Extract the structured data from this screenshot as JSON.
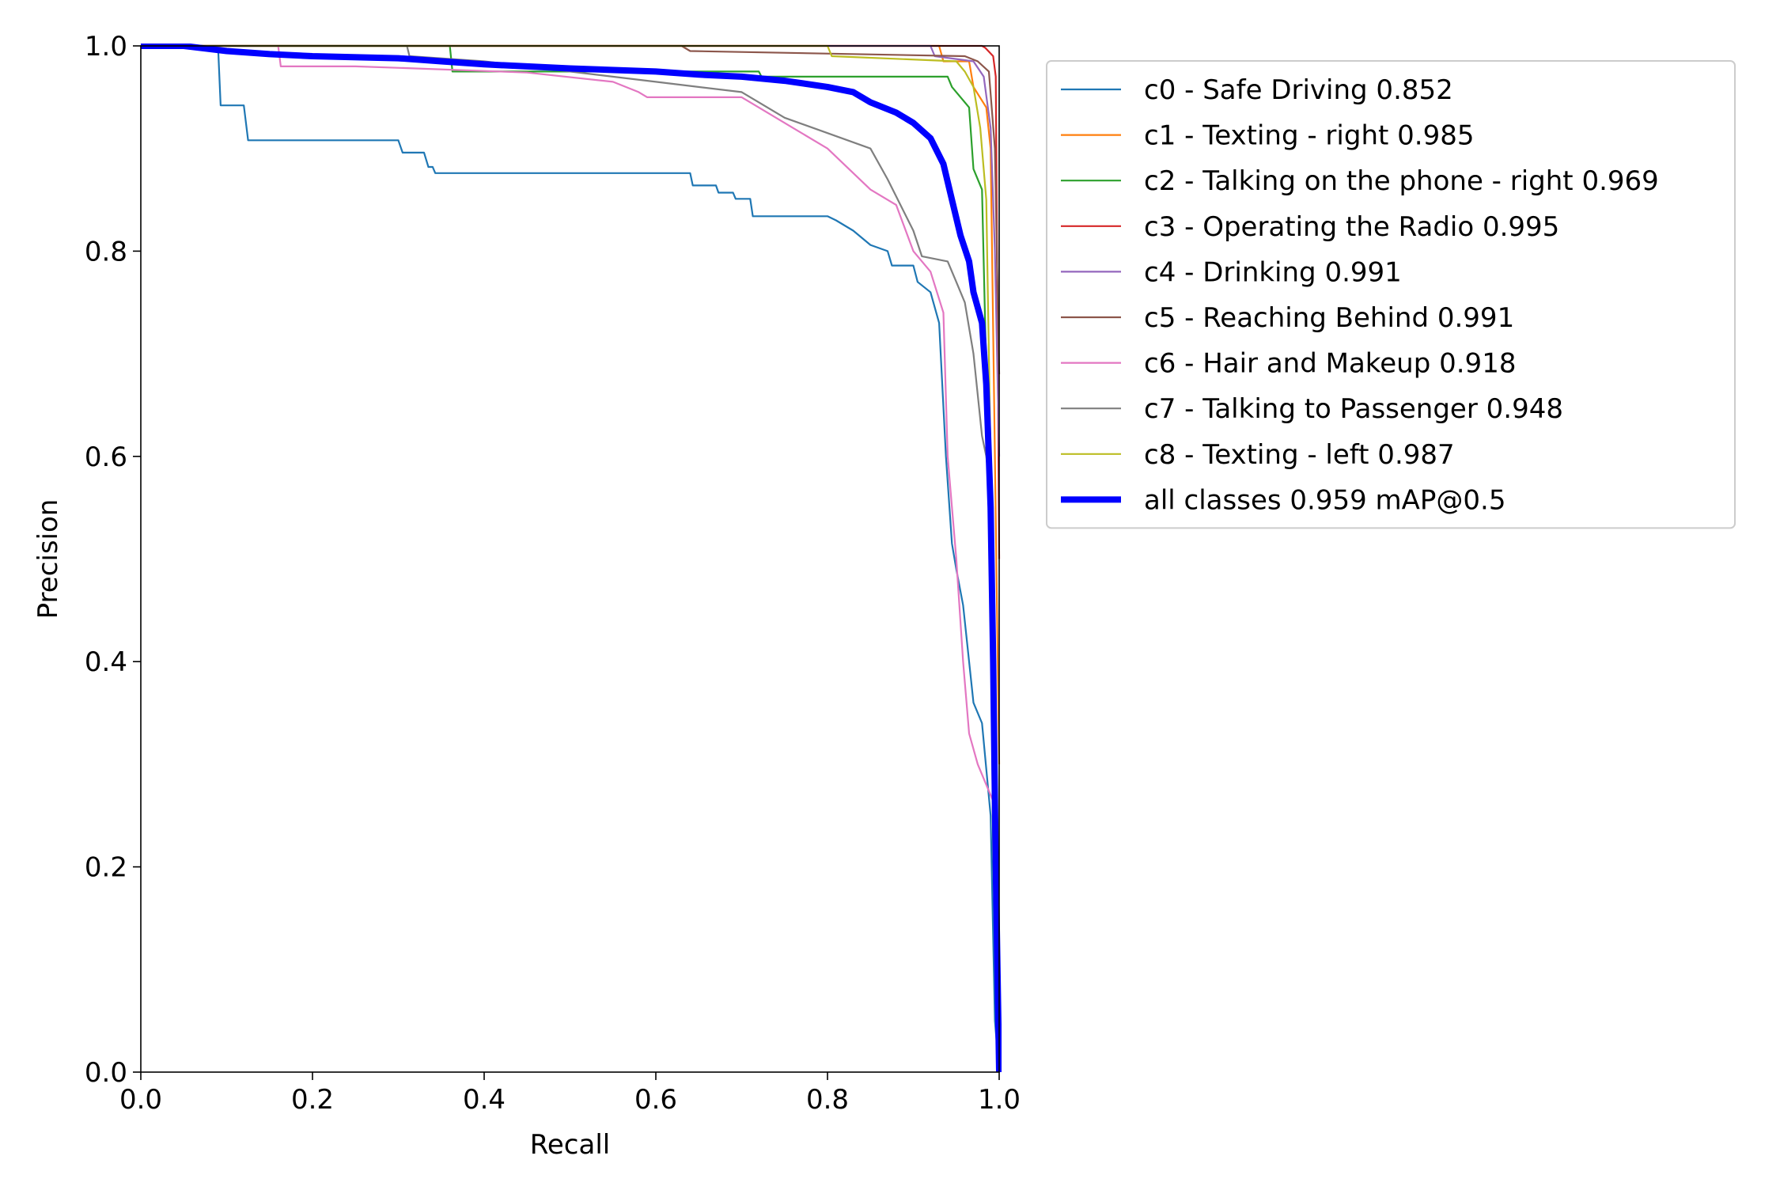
{
  "chart_data": {
    "type": "line",
    "title": "",
    "xlabel": "Recall",
    "ylabel": "Precision",
    "xlim": [
      0,
      1
    ],
    "ylim": [
      0,
      1
    ],
    "xticks": [
      "0.0",
      "0.2",
      "0.4",
      "0.6",
      "0.8",
      "1.0"
    ],
    "yticks": [
      "0.0",
      "0.2",
      "0.4",
      "0.6",
      "0.8",
      "1.0"
    ],
    "grid": false,
    "legend_position": "outside-right-top",
    "series": [
      {
        "name": "c0 - Safe Driving 0.852",
        "color": "#1f77b4",
        "emphasis": false,
        "points": [
          [
            0,
            1
          ],
          [
            0.09,
            1
          ],
          [
            0.093,
            0.942
          ],
          [
            0.12,
            0.942
          ],
          [
            0.125,
            0.908
          ],
          [
            0.3,
            0.908
          ],
          [
            0.305,
            0.896
          ],
          [
            0.33,
            0.896
          ],
          [
            0.335,
            0.882
          ],
          [
            0.34,
            0.882
          ],
          [
            0.343,
            0.876
          ],
          [
            0.64,
            0.876
          ],
          [
            0.643,
            0.864
          ],
          [
            0.67,
            0.864
          ],
          [
            0.673,
            0.857
          ],
          [
            0.69,
            0.857
          ],
          [
            0.693,
            0.851
          ],
          [
            0.71,
            0.851
          ],
          [
            0.713,
            0.834
          ],
          [
            0.8,
            0.834
          ],
          [
            0.81,
            0.83
          ],
          [
            0.83,
            0.82
          ],
          [
            0.85,
            0.806
          ],
          [
            0.87,
            0.8
          ],
          [
            0.875,
            0.786
          ],
          [
            0.9,
            0.786
          ],
          [
            0.905,
            0.77
          ],
          [
            0.92,
            0.76
          ],
          [
            0.93,
            0.73
          ],
          [
            0.938,
            0.6
          ],
          [
            0.945,
            0.515
          ],
          [
            0.95,
            0.49
          ],
          [
            0.958,
            0.455
          ],
          [
            0.965,
            0.4
          ],
          [
            0.97,
            0.36
          ],
          [
            0.98,
            0.34
          ],
          [
            0.99,
            0.25
          ],
          [
            0.995,
            0.05
          ],
          [
            1.0,
            0
          ]
        ]
      },
      {
        "name": "c1 - Texting - right 0.985",
        "color": "#ff7f0e",
        "emphasis": false,
        "points": [
          [
            0,
            1
          ],
          [
            0.93,
            1
          ],
          [
            0.935,
            0.985
          ],
          [
            0.965,
            0.985
          ],
          [
            0.97,
            0.96
          ],
          [
            0.985,
            0.94
          ],
          [
            0.99,
            0.9
          ],
          [
            0.995,
            0.6
          ],
          [
            1.0,
            0.3
          ]
        ]
      },
      {
        "name": "c2 - Talking on the phone - right 0.969",
        "color": "#2ca02c",
        "emphasis": false,
        "points": [
          [
            0,
            1
          ],
          [
            0.36,
            1
          ],
          [
            0.363,
            0.975
          ],
          [
            0.72,
            0.975
          ],
          [
            0.723,
            0.97
          ],
          [
            0.94,
            0.97
          ],
          [
            0.945,
            0.96
          ],
          [
            0.965,
            0.94
          ],
          [
            0.97,
            0.88
          ],
          [
            0.98,
            0.86
          ],
          [
            0.99,
            0.5
          ],
          [
            0.993,
            0.212
          ],
          [
            0.996,
            0.1
          ],
          [
            1.0,
            0
          ]
        ]
      },
      {
        "name": "c3 - Operating the Radio 0.995",
        "color": "#d62728",
        "emphasis": false,
        "points": [
          [
            0,
            1
          ],
          [
            0.98,
            1
          ],
          [
            0.984,
            0.998
          ],
          [
            0.993,
            0.99
          ],
          [
            0.996,
            0.97
          ],
          [
            1.0,
            0.5
          ]
        ]
      },
      {
        "name": "c4 - Drinking 0.991",
        "color": "#9467bd",
        "emphasis": false,
        "points": [
          [
            0,
            1
          ],
          [
            0.92,
            1
          ],
          [
            0.925,
            0.99
          ],
          [
            0.97,
            0.985
          ],
          [
            0.982,
            0.97
          ],
          [
            0.99,
            0.92
          ],
          [
            0.995,
            0.8
          ],
          [
            1.0,
            0.6
          ]
        ]
      },
      {
        "name": "c5 - Reaching Behind 0.991",
        "color": "#8c564b",
        "emphasis": false,
        "points": [
          [
            0,
            1
          ],
          [
            0.63,
            1
          ],
          [
            0.64,
            0.995
          ],
          [
            0.96,
            0.99
          ],
          [
            0.975,
            0.985
          ],
          [
            0.988,
            0.975
          ],
          [
            0.995,
            0.9
          ],
          [
            1.0,
            0.68
          ]
        ]
      },
      {
        "name": "c6 - Hair and Makeup 0.918",
        "color": "#e377c2",
        "emphasis": false,
        "points": [
          [
            0,
            1
          ],
          [
            0.16,
            1
          ],
          [
            0.163,
            0.98
          ],
          [
            0.25,
            0.98
          ],
          [
            0.32,
            0.978
          ],
          [
            0.45,
            0.974
          ],
          [
            0.55,
            0.965
          ],
          [
            0.58,
            0.955
          ],
          [
            0.59,
            0.95
          ],
          [
            0.7,
            0.95
          ],
          [
            0.73,
            0.935
          ],
          [
            0.76,
            0.92
          ],
          [
            0.8,
            0.9
          ],
          [
            0.85,
            0.86
          ],
          [
            0.88,
            0.845
          ],
          [
            0.9,
            0.8
          ],
          [
            0.92,
            0.78
          ],
          [
            0.935,
            0.74
          ],
          [
            0.94,
            0.6
          ],
          [
            0.95,
            0.5
          ],
          [
            0.958,
            0.4
          ],
          [
            0.965,
            0.33
          ],
          [
            0.975,
            0.3
          ],
          [
            0.985,
            0.28
          ],
          [
            0.995,
            0.26
          ],
          [
            1.0,
            0
          ]
        ]
      },
      {
        "name": "c7 - Talking to Passenger 0.948",
        "color": "#7f7f7f",
        "emphasis": false,
        "points": [
          [
            0,
            1
          ],
          [
            0.31,
            1
          ],
          [
            0.313,
            0.99
          ],
          [
            0.4,
            0.985
          ],
          [
            0.5,
            0.975
          ],
          [
            0.6,
            0.965
          ],
          [
            0.7,
            0.955
          ],
          [
            0.75,
            0.93
          ],
          [
            0.8,
            0.915
          ],
          [
            0.85,
            0.9
          ],
          [
            0.87,
            0.87
          ],
          [
            0.9,
            0.82
          ],
          [
            0.91,
            0.795
          ],
          [
            0.94,
            0.79
          ],
          [
            0.95,
            0.77
          ],
          [
            0.96,
            0.75
          ],
          [
            0.97,
            0.7
          ],
          [
            0.98,
            0.62
          ],
          [
            0.985,
            0.6
          ],
          [
            0.99,
            0.56
          ],
          [
            1.0,
            0
          ]
        ]
      },
      {
        "name": "c8 - Texting - left 0.987",
        "color": "#bcbd22",
        "emphasis": false,
        "points": [
          [
            0,
            1
          ],
          [
            0.8,
            1
          ],
          [
            0.805,
            0.99
          ],
          [
            0.95,
            0.985
          ],
          [
            0.96,
            0.975
          ],
          [
            0.97,
            0.96
          ],
          [
            0.978,
            0.92
          ],
          [
            0.985,
            0.85
          ],
          [
            0.992,
            0.5
          ],
          [
            0.995,
            0.3
          ],
          [
            1.0,
            0.1
          ]
        ]
      },
      {
        "name": "all classes 0.959 mAP@0.5",
        "color": "#0000ff",
        "emphasis": true,
        "points": [
          [
            0,
            1
          ],
          [
            0.05,
            1
          ],
          [
            0.1,
            0.995
          ],
          [
            0.15,
            0.992
          ],
          [
            0.2,
            0.99
          ],
          [
            0.3,
            0.988
          ],
          [
            0.35,
            0.985
          ],
          [
            0.4,
            0.982
          ],
          [
            0.5,
            0.978
          ],
          [
            0.6,
            0.975
          ],
          [
            0.65,
            0.972
          ],
          [
            0.7,
            0.97
          ],
          [
            0.75,
            0.966
          ],
          [
            0.8,
            0.96
          ],
          [
            0.83,
            0.955
          ],
          [
            0.85,
            0.945
          ],
          [
            0.88,
            0.935
          ],
          [
            0.9,
            0.925
          ],
          [
            0.92,
            0.91
          ],
          [
            0.935,
            0.885
          ],
          [
            0.945,
            0.85
          ],
          [
            0.955,
            0.815
          ],
          [
            0.965,
            0.79
          ],
          [
            0.97,
            0.76
          ],
          [
            0.975,
            0.745
          ],
          [
            0.98,
            0.73
          ],
          [
            0.985,
            0.67
          ],
          [
            0.99,
            0.55
          ],
          [
            0.993,
            0.4
          ],
          [
            0.996,
            0.2
          ],
          [
            1.0,
            0
          ]
        ]
      }
    ]
  }
}
